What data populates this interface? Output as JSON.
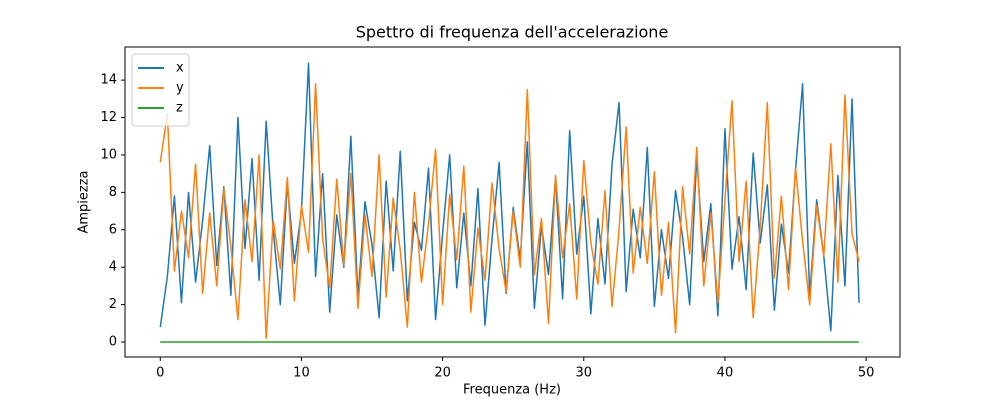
{
  "chart_data": {
    "type": "line",
    "title": "Spettro di frequenza dell'accelerazione",
    "xlabel": "Frequenza (Hz)",
    "ylabel": "Ampiezza",
    "x": [
      0,
      0.5,
      1,
      1.5,
      2,
      2.5,
      3,
      3.5,
      4,
      4.5,
      5,
      5.5,
      6,
      6.5,
      7,
      7.5,
      8,
      8.5,
      9,
      9.5,
      10,
      10.5,
      11,
      11.5,
      12,
      12.5,
      13,
      13.5,
      14,
      14.5,
      15,
      15.5,
      16,
      16.5,
      17,
      17.5,
      18,
      18.5,
      19,
      19.5,
      20,
      20.5,
      21,
      21.5,
      22,
      22.5,
      23,
      23.5,
      24,
      24.5,
      25,
      25.5,
      26,
      26.5,
      27,
      27.5,
      28,
      28.5,
      29,
      29.5,
      30,
      30.5,
      31,
      31.5,
      32,
      32.5,
      33,
      33.5,
      34,
      34.5,
      35,
      35.5,
      36,
      36.5,
      37,
      37.5,
      38,
      38.5,
      39,
      39.5,
      40,
      40.5,
      41,
      41.5,
      42,
      42.5,
      43,
      43.5,
      44,
      44.5,
      45,
      45.5,
      46,
      46.5,
      47,
      47.5,
      48,
      48.5,
      49,
      49.5
    ],
    "series": [
      {
        "name": "x",
        "color": "#1f77b4",
        "values": [
          0.8,
          3.5,
          7.8,
          2.1,
          8.0,
          3.2,
          6.5,
          10.5,
          4.1,
          8.3,
          2.5,
          12.0,
          5.0,
          9.8,
          3.3,
          11.8,
          6.0,
          2.0,
          8.5,
          4.2,
          7.0,
          14.9,
          3.5,
          9.0,
          1.6,
          6.8,
          4.0,
          11.0,
          2.4,
          7.5,
          5.2,
          1.3,
          8.6,
          3.8,
          10.2,
          2.2,
          6.4,
          4.9,
          9.3,
          1.2,
          5.8,
          10.0,
          2.9,
          6.9,
          3.0,
          8.2,
          0.9,
          5.5,
          9.6,
          2.6,
          7.2,
          4.4,
          10.7,
          1.8,
          6.2,
          3.6,
          8.8,
          2.3,
          11.3,
          4.7,
          7.8,
          1.5,
          6.6,
          3.1,
          9.5,
          12.8,
          2.7,
          7.1,
          4.5,
          10.4,
          1.9,
          6.0,
          3.4,
          8.1,
          5.6,
          2.0,
          9.9,
          4.3,
          7.4,
          1.4,
          11.4,
          3.9,
          6.7,
          2.8,
          10.1,
          5.3,
          8.4,
          1.7,
          6.3,
          3.7,
          9.2,
          13.8,
          2.5,
          7.6,
          4.6,
          0.6,
          8.9,
          3.0,
          13.0,
          2.1
        ]
      },
      {
        "name": "y",
        "color": "#ff7f0e",
        "values": [
          9.6,
          12.2,
          3.8,
          7.0,
          4.5,
          9.5,
          2.6,
          6.9,
          3.0,
          8.2,
          5.1,
          1.2,
          7.6,
          4.3,
          10.0,
          0.2,
          6.5,
          3.9,
          8.8,
          2.2,
          7.3,
          4.8,
          13.8,
          5.5,
          2.9,
          8.7,
          4.1,
          9.0,
          1.8,
          6.8,
          3.5,
          10.0,
          2.4,
          7.7,
          4.9,
          0.8,
          8.0,
          3.2,
          6.3,
          10.3,
          2.0,
          7.9,
          4.4,
          9.4,
          1.6,
          6.1,
          3.3,
          8.5,
          5.0,
          2.7,
          7.0,
          4.0,
          13.5,
          3.6,
          6.6,
          1.0,
          8.9,
          4.5,
          7.4,
          2.3,
          9.7,
          5.3,
          3.1,
          8.1,
          1.9,
          6.0,
          11.5,
          3.7,
          7.2,
          4.2,
          9.1,
          2.5,
          6.4,
          0.5,
          8.3,
          4.7,
          10.4,
          3.0,
          6.9,
          2.1,
          7.6,
          12.9,
          4.3,
          8.6,
          1.3,
          6.2,
          12.8,
          3.4,
          7.8,
          2.8,
          9.3,
          5.4,
          2.0,
          7.3,
          4.6,
          10.6,
          3.2,
          13.2,
          5.8,
          4.3
        ]
      },
      {
        "name": "z",
        "color": "#2ca02c",
        "values": [
          0,
          0,
          0,
          0,
          0,
          0,
          0,
          0,
          0,
          0,
          0,
          0,
          0,
          0,
          0,
          0,
          0,
          0,
          0,
          0,
          0,
          0,
          0,
          0,
          0,
          0,
          0,
          0,
          0,
          0,
          0,
          0,
          0,
          0,
          0,
          0,
          0,
          0,
          0,
          0,
          0,
          0,
          0,
          0,
          0,
          0,
          0,
          0,
          0,
          0,
          0,
          0,
          0,
          0,
          0,
          0,
          0,
          0,
          0,
          0,
          0,
          0,
          0,
          0,
          0,
          0,
          0,
          0,
          0,
          0,
          0,
          0,
          0,
          0,
          0,
          0,
          0,
          0,
          0,
          0,
          0,
          0,
          0,
          0,
          0,
          0,
          0,
          0,
          0,
          0,
          0,
          0,
          0,
          0,
          0,
          0,
          0,
          0,
          0,
          0
        ]
      }
    ],
    "xlim": [
      -2.5,
      52.4
    ],
    "ylim": [
      -0.8,
      15.77
    ],
    "xticks": [
      0,
      10,
      20,
      30,
      40,
      50
    ],
    "yticks": [
      0,
      2,
      4,
      6,
      8,
      10,
      12,
      14
    ],
    "legend": "upper left"
  }
}
